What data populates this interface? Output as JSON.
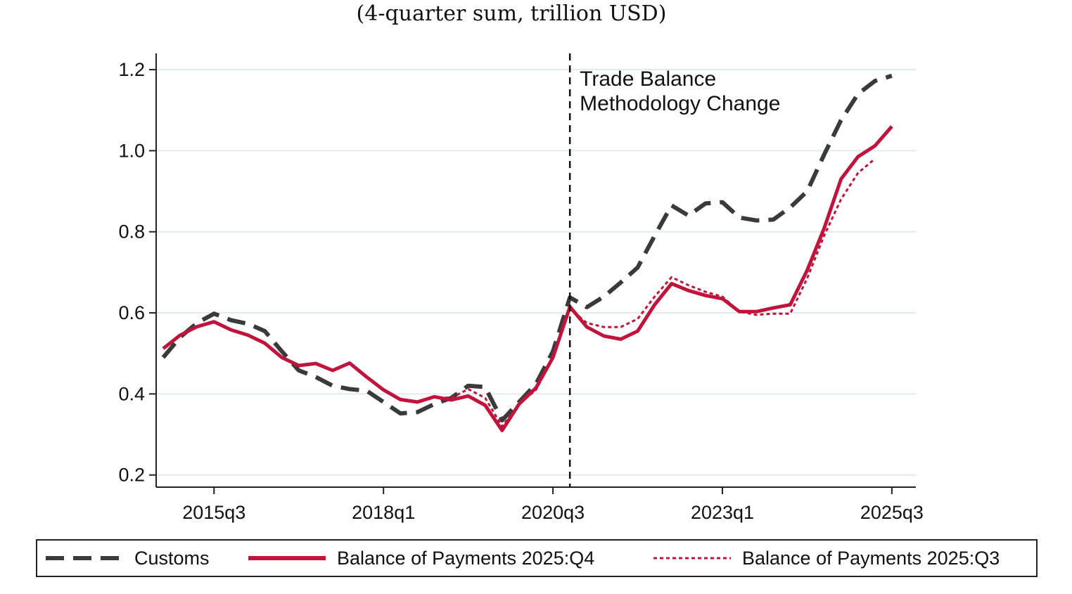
{
  "chart_data": {
    "type": "line",
    "title": "(4-quarter sum, trillion USD)",
    "xlabel": "",
    "ylabel": "",
    "x_start": "2014q4",
    "x_end": "2025q4",
    "xticks": [
      "2015q3",
      "2018q1",
      "2020q3",
      "2023q1",
      "2025q3"
    ],
    "yticks": [
      "0.2",
      "0.4",
      "0.6",
      "0.8",
      "1.0",
      "1.2"
    ],
    "ylim": [
      0.17,
      1.24
    ],
    "grid": true,
    "legend_position": "bottom",
    "annotation": {
      "x": "2020q4",
      "lines": [
        "Trade Balance",
        "Methodology Change"
      ]
    },
    "series": [
      {
        "name": "Customs",
        "color": "#3a3a3a",
        "style": "dashed",
        "start": "2014q4",
        "values": [
          0.49,
          0.54,
          0.575,
          0.598,
          0.582,
          0.573,
          0.555,
          0.505,
          0.458,
          0.442,
          0.42,
          0.412,
          0.408,
          0.38,
          0.352,
          0.355,
          0.375,
          0.39,
          0.42,
          0.417,
          0.335,
          0.38,
          0.425,
          0.505,
          0.638,
          0.614,
          0.64,
          0.675,
          0.712,
          0.79,
          0.865,
          0.84,
          0.87,
          0.873,
          0.835,
          0.828,
          0.83,
          0.86,
          0.9,
          0.99,
          1.075,
          1.14,
          1.172,
          1.185
        ]
      },
      {
        "name": "Balance of Payments 2025:Q4",
        "color": "#c0143c",
        "style": "solid",
        "start": "2014q4",
        "values": [
          0.512,
          0.545,
          0.566,
          0.578,
          0.558,
          0.545,
          0.525,
          0.49,
          0.47,
          0.475,
          0.458,
          0.476,
          0.442,
          0.41,
          0.386,
          0.38,
          0.393,
          0.385,
          0.395,
          0.372,
          0.31,
          0.375,
          0.415,
          0.49,
          0.615,
          0.565,
          0.543,
          0.535,
          0.555,
          0.62,
          0.672,
          0.655,
          0.643,
          0.635,
          0.603,
          0.603,
          0.612,
          0.62,
          0.705,
          0.808,
          0.93,
          0.985,
          1.012,
          1.06
        ]
      },
      {
        "name": "Balance of Payments 2025:Q3",
        "color": "#c0143c",
        "style": "dotted",
        "start": "2014q4",
        "values": [
          0.512,
          0.545,
          0.566,
          0.578,
          0.558,
          0.545,
          0.525,
          0.49,
          0.47,
          0.475,
          0.458,
          0.476,
          0.442,
          0.41,
          0.386,
          0.38,
          0.393,
          0.39,
          0.412,
          0.39,
          0.32,
          0.375,
          0.41,
          0.49,
          0.61,
          0.575,
          0.565,
          0.565,
          0.585,
          0.64,
          0.688,
          0.668,
          0.652,
          0.64,
          0.603,
          0.595,
          0.598,
          0.598,
          0.685,
          0.79,
          0.88,
          0.945,
          0.98
        ]
      }
    ]
  }
}
